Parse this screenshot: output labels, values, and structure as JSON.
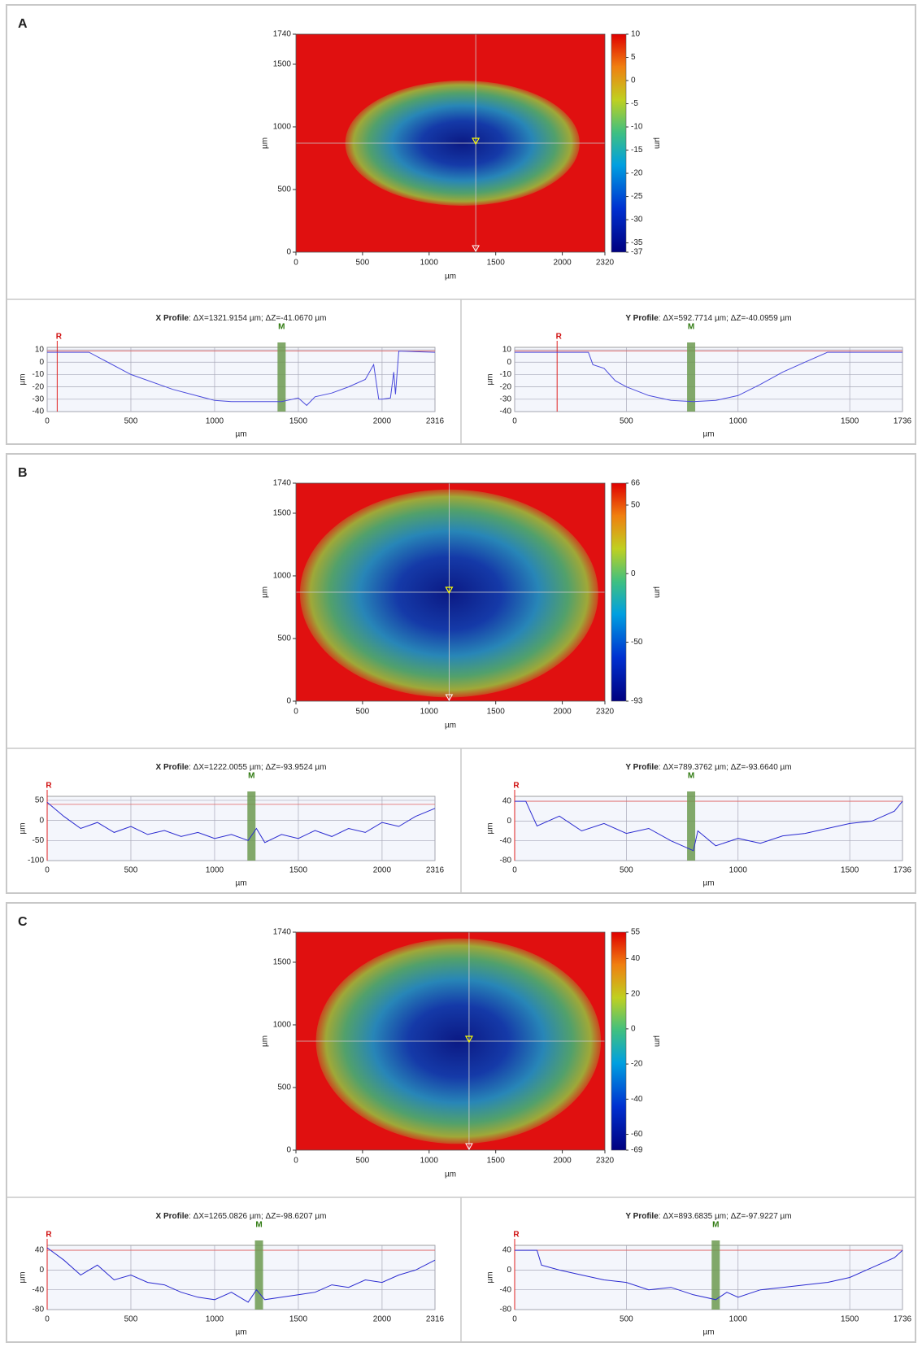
{
  "panels": [
    {
      "label": "A",
      "map": {
        "xlim": [
          0,
          2320
        ],
        "xticks": [
          0,
          500,
          1000,
          1500,
          2000,
          2320
        ],
        "ylim": [
          0,
          1740
        ],
        "yticks": [
          0,
          500,
          1000,
          1500,
          1740
        ],
        "xlabel": "µm",
        "ylabel": "µm",
        "colorbar": {
          "lim": [
            -37,
            10
          ],
          "ticks": [
            10,
            5,
            0,
            -5,
            -10,
            -15,
            -20,
            -25,
            -30,
            -35,
            -37
          ],
          "label": "µm"
        }
      },
      "profiles": [
        {
          "title": "X Profile",
          "stats": ": ΔX=1321.9154 µm; ΔZ=-41.0670 µm",
          "r_label": "R",
          "m_label": "M",
          "r_x": 60,
          "m_x": 1400,
          "reference": 9,
          "xlim": [
            0,
            2316
          ],
          "xticks": [
            0,
            500,
            1000,
            1500,
            2000,
            2316
          ],
          "ylim": [
            -40,
            12
          ],
          "yticks": [
            10,
            0,
            -10,
            -20,
            -30,
            -40
          ],
          "xlabel": "µm",
          "ylabel": "µm",
          "color": "#4a4adc",
          "x": [
            0,
            250,
            500,
            750,
            1000,
            1100,
            1250,
            1400,
            1500,
            1550,
            1600,
            1700,
            1800,
            1900,
            1950,
            1980,
            2000,
            2050,
            2070,
            2080,
            2100,
            2316
          ],
          "values": [
            8,
            8,
            -10,
            -22,
            -31,
            -32,
            -32,
            -32,
            -29,
            -35,
            -28,
            -25,
            -20,
            -14,
            -2,
            -30,
            -30,
            -29,
            -8,
            -26,
            9,
            8
          ]
        },
        {
          "title": "Y Profile",
          "stats": ": ΔX=592.7714 µm; ΔZ=-40.0959 µm",
          "r_label": "R",
          "m_label": "M",
          "r_x": 190,
          "m_x": 790,
          "reference": 9,
          "xlim": [
            0,
            1736
          ],
          "xticks": [
            0,
            500,
            1000,
            1500,
            1736
          ],
          "ylim": [
            -40,
            12
          ],
          "yticks": [
            10,
            0,
            -10,
            -20,
            -30,
            -40
          ],
          "xlabel": "µm",
          "ylabel": "µm",
          "color": "#4a4adc",
          "x": [
            0,
            330,
            350,
            400,
            450,
            500,
            600,
            700,
            800,
            900,
            1000,
            1100,
            1200,
            1300,
            1400,
            1736
          ],
          "values": [
            8,
            8,
            -2,
            -5,
            -15,
            -20,
            -27,
            -31,
            -32,
            -31,
            -27,
            -18,
            -8,
            0,
            8,
            8
          ]
        }
      ]
    },
    {
      "label": "B",
      "map": {
        "xlim": [
          0,
          2320
        ],
        "xticks": [
          0,
          500,
          1000,
          1500,
          2000,
          2320
        ],
        "ylim": [
          0,
          1740
        ],
        "yticks": [
          0,
          500,
          1000,
          1500,
          1740
        ],
        "xlabel": "µm",
        "ylabel": "µm",
        "colorbar": {
          "lim": [
            -93,
            66
          ],
          "ticks": [
            66,
            50,
            0,
            -50,
            -93
          ],
          "label": "µm"
        }
      },
      "profiles": [
        {
          "title": "X Profile",
          "stats": ": ΔX=1222.0055 µm; ΔZ=-93.9524 µm",
          "r_label": "R",
          "m_label": "M",
          "r_x": 0,
          "m_x": 1220,
          "reference": 40,
          "xlim": [
            0,
            2316
          ],
          "xticks": [
            0,
            500,
            1000,
            1500,
            2000,
            2316
          ],
          "ylim": [
            -100,
            60
          ],
          "yticks": [
            50,
            0,
            -50,
            -100
          ],
          "xlabel": "µm",
          "ylabel": "µm",
          "color": "#2a2ad0",
          "x": [
            0,
            100,
            200,
            300,
            400,
            500,
            600,
            700,
            800,
            900,
            1000,
            1100,
            1200,
            1250,
            1300,
            1400,
            1500,
            1600,
            1700,
            1800,
            1900,
            2000,
            2100,
            2200,
            2316
          ],
          "values": [
            45,
            10,
            -20,
            -5,
            -30,
            -15,
            -35,
            -25,
            -40,
            -30,
            -45,
            -35,
            -50,
            -20,
            -55,
            -35,
            -45,
            -25,
            -40,
            -20,
            -30,
            -5,
            -15,
            10,
            30
          ]
        },
        {
          "title": "Y Profile",
          "stats": ": ΔX=789.3762 µm; ΔZ=-93.6640 µm",
          "r_label": "R",
          "m_label": "M",
          "r_x": 0,
          "m_x": 790,
          "reference": 40,
          "xlim": [
            0,
            1736
          ],
          "xticks": [
            0,
            500,
            1000,
            1500,
            1736
          ],
          "ylim": [
            -80,
            50
          ],
          "yticks": [
            40,
            0,
            -40,
            -80
          ],
          "xlabel": "µm",
          "ylabel": "µm",
          "color": "#2a2ad0",
          "x": [
            0,
            50,
            100,
            200,
            300,
            400,
            500,
            600,
            700,
            800,
            820,
            900,
            1000,
            1100,
            1200,
            1300,
            1400,
            1500,
            1600,
            1700,
            1736
          ],
          "values": [
            40,
            40,
            -10,
            10,
            -20,
            -5,
            -25,
            -15,
            -40,
            -60,
            -20,
            -50,
            -35,
            -45,
            -30,
            -25,
            -15,
            -5,
            0,
            20,
            40
          ]
        }
      ]
    },
    {
      "label": "C",
      "map": {
        "xlim": [
          0,
          2320
        ],
        "xticks": [
          0,
          500,
          1000,
          1500,
          2000,
          2320
        ],
        "ylim": [
          0,
          1740
        ],
        "yticks": [
          0,
          500,
          1000,
          1500,
          1740
        ],
        "xlabel": "µm",
        "ylabel": "µm",
        "colorbar": {
          "lim": [
            -69,
            55
          ],
          "ticks": [
            55,
            40,
            20,
            0,
            -20,
            -40,
            -60,
            -69
          ],
          "label": "µm"
        }
      },
      "profiles": [
        {
          "title": "X Profile",
          "stats": ": ΔX=1265.0826 µm; ΔZ=-98.6207 µm",
          "r_label": "R",
          "m_label": "M",
          "r_x": 0,
          "m_x": 1265,
          "reference": 40,
          "xlim": [
            0,
            2316
          ],
          "xticks": [
            0,
            500,
            1000,
            1500,
            2000,
            2316
          ],
          "ylim": [
            -80,
            50
          ],
          "yticks": [
            40,
            0,
            -40,
            -80
          ],
          "xlabel": "µm",
          "ylabel": "µm",
          "color": "#2a2ad0",
          "x": [
            0,
            100,
            200,
            300,
            400,
            500,
            600,
            700,
            800,
            900,
            1000,
            1100,
            1200,
            1250,
            1300,
            1400,
            1500,
            1600,
            1700,
            1800,
            1900,
            2000,
            2100,
            2200,
            2316
          ],
          "values": [
            45,
            20,
            -10,
            10,
            -20,
            -10,
            -25,
            -30,
            -45,
            -55,
            -60,
            -45,
            -65,
            -40,
            -60,
            -55,
            -50,
            -45,
            -30,
            -35,
            -20,
            -25,
            -10,
            0,
            20
          ]
        },
        {
          "title": "Y Profile",
          "stats": ": ΔX=893.6835 µm; ΔZ=-97.9227 µm",
          "r_label": "R",
          "m_label": "M",
          "r_x": 0,
          "m_x": 900,
          "reference": 40,
          "xlim": [
            0,
            1736
          ],
          "xticks": [
            0,
            500,
            1000,
            1500,
            1736
          ],
          "ylim": [
            -80,
            50
          ],
          "yticks": [
            40,
            0,
            -40,
            -80
          ],
          "xlabel": "µm",
          "ylabel": "µm",
          "color": "#2a2ad0",
          "x": [
            0,
            100,
            120,
            200,
            300,
            400,
            500,
            600,
            700,
            800,
            900,
            950,
            1000,
            1100,
            1200,
            1300,
            1400,
            1500,
            1600,
            1700,
            1736
          ],
          "values": [
            40,
            40,
            10,
            0,
            -10,
            -20,
            -25,
            -40,
            -35,
            -50,
            -60,
            -45,
            -55,
            -40,
            -35,
            -30,
            -25,
            -15,
            5,
            25,
            40
          ]
        }
      ]
    }
  ]
}
